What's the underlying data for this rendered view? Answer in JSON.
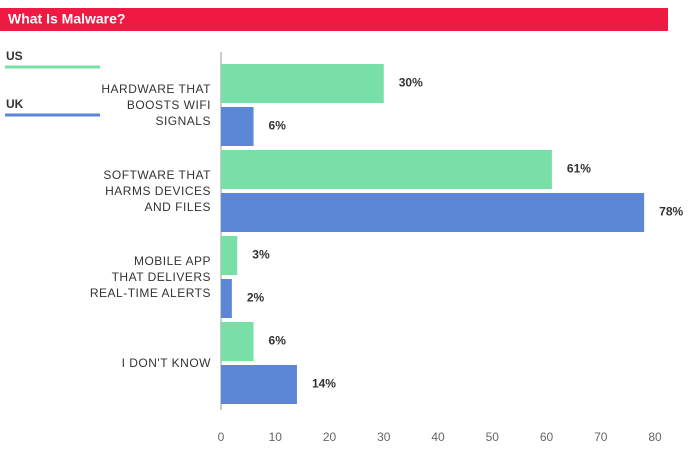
{
  "chart_data": {
    "type": "bar",
    "orientation": "horizontal",
    "title": "What Is Malware?",
    "categories": [
      "HARDWARE THAT\nBOOSTS WIFI\nSIGNALS",
      "SOFTWARE THAT\nHARMS DEVICES\nAND FILES",
      "MOBILE APP\nTHAT DELIVERS\nREAL-TIME ALERTS",
      "I DON'T KNOW"
    ],
    "series": [
      {
        "name": "US",
        "color": "#78dfa6",
        "values": [
          30,
          61,
          3,
          6
        ],
        "value_labels": [
          "30%",
          "61%",
          "3%",
          "6%"
        ]
      },
      {
        "name": "UK",
        "color": "#5b87d6",
        "values": [
          6,
          78,
          2,
          14
        ],
        "value_labels": [
          "6%",
          "78%",
          "2%",
          "14%"
        ]
      }
    ],
    "xlim": [
      0,
      80
    ],
    "xticks": [
      0,
      10,
      20,
      30,
      40,
      50,
      60,
      70,
      80
    ],
    "grid": false,
    "legend": "left"
  }
}
